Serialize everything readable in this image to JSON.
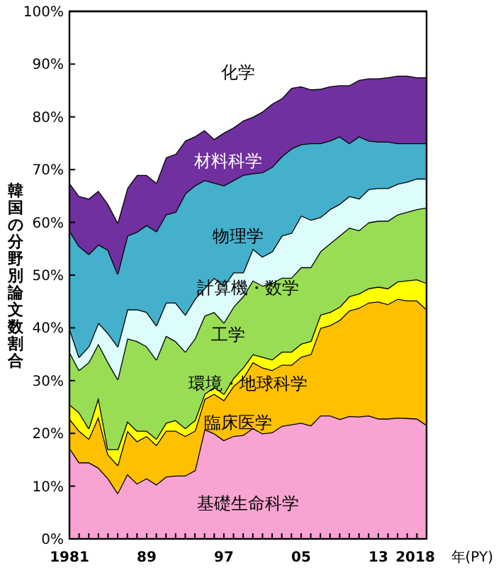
{
  "chart_data": {
    "type": "area",
    "stacked": true,
    "ylabel": "韓国の分野別論文数割合",
    "xlabel": "年(PY)",
    "x": [
      1981,
      1982,
      1983,
      1984,
      1985,
      1986,
      1987,
      1988,
      1989,
      1990,
      1991,
      1992,
      1993,
      1994,
      1995,
      1996,
      1997,
      1998,
      1999,
      2000,
      2001,
      2002,
      2003,
      2004,
      2005,
      2006,
      2007,
      2008,
      2009,
      2010,
      2011,
      2012,
      2013,
      2014,
      2015,
      2016,
      2017,
      2018
    ],
    "xlim": [
      1981,
      2018
    ],
    "xticks": [
      {
        "value": 1981,
        "label": "1981"
      },
      {
        "value": 1982,
        "label": null
      },
      {
        "value": 1983,
        "label": null
      },
      {
        "value": 1984,
        "label": null
      },
      {
        "value": 1985,
        "label": null
      },
      {
        "value": 1986,
        "label": null
      },
      {
        "value": 1987,
        "label": null
      },
      {
        "value": 1988,
        "label": null
      },
      {
        "value": 1989,
        "label": "89"
      },
      {
        "value": 1990,
        "label": null
      },
      {
        "value": 1991,
        "label": null
      },
      {
        "value": 1992,
        "label": null
      },
      {
        "value": 1993,
        "label": null
      },
      {
        "value": 1994,
        "label": null
      },
      {
        "value": 1995,
        "label": null
      },
      {
        "value": 1996,
        "label": null
      },
      {
        "value": 1997,
        "label": "97"
      },
      {
        "value": 1998,
        "label": null
      },
      {
        "value": 1999,
        "label": null
      },
      {
        "value": 2000,
        "label": null
      },
      {
        "value": 2001,
        "label": null
      },
      {
        "value": 2002,
        "label": null
      },
      {
        "value": 2003,
        "label": null
      },
      {
        "value": 2004,
        "label": null
      },
      {
        "value": 2005,
        "label": "05"
      },
      {
        "value": 2006,
        "label": null
      },
      {
        "value": 2007,
        "label": null
      },
      {
        "value": 2008,
        "label": null
      },
      {
        "value": 2009,
        "label": null
      },
      {
        "value": 2010,
        "label": null
      },
      {
        "value": 2011,
        "label": null
      },
      {
        "value": 2012,
        "label": null
      },
      {
        "value": 2013,
        "label": "13"
      },
      {
        "value": 2014,
        "label": null
      },
      {
        "value": 2015,
        "label": null
      },
      {
        "value": 2016,
        "label": null
      },
      {
        "value": 2017,
        "label": null
      },
      {
        "value": 2018,
        "label": "2018"
      }
    ],
    "ylim": [
      0,
      100
    ],
    "yticks": [
      {
        "value": 0,
        "label": "0%"
      },
      {
        "value": 10,
        "label": "10%"
      },
      {
        "value": 20,
        "label": "20%"
      },
      {
        "value": 30,
        "label": "30%"
      },
      {
        "value": 40,
        "label": "40%"
      },
      {
        "value": 50,
        "label": "50%"
      },
      {
        "value": 60,
        "label": "60%"
      },
      {
        "value": 70,
        "label": "70%"
      },
      {
        "value": 80,
        "label": "80%"
      },
      {
        "value": 90,
        "label": "90%"
      },
      {
        "value": 100,
        "label": "100%"
      }
    ],
    "grid": false,
    "series": [
      {
        "name": "基礎生命科学",
        "color": "#f9a3d2",
        "values": [
          17.3,
          14.5,
          14.5,
          13.5,
          11.5,
          8.7,
          12.3,
          10.5,
          11.5,
          10.3,
          11.8,
          12,
          12,
          13,
          20.8,
          20,
          18.7,
          19.5,
          19.7,
          21,
          20,
          20.2,
          21.4,
          21.7,
          22,
          21.5,
          23.4,
          23.4,
          22.7,
          23.3,
          23.2,
          23.4,
          22.8,
          22.8,
          23,
          22.9,
          22.8,
          21.6
        ]
      },
      {
        "name": "臨床医学",
        "color": "#ffc000",
        "values": [
          5.5,
          6,
          4.5,
          9.7,
          4.5,
          5.3,
          8.2,
          8,
          8,
          7.5,
          8.7,
          8.5,
          7.5,
          7.5,
          5.7,
          7.5,
          7.6,
          9.5,
          10.8,
          12.5,
          12.5,
          11.8,
          11.6,
          11.3,
          12.5,
          13.5,
          16.6,
          17.1,
          18.8,
          20,
          20.6,
          21.4,
          22.2,
          21.7,
          22.5,
          22.3,
          22.4,
          21.9
        ]
      },
      {
        "name": "環境・地球科学",
        "color": "#ffff00",
        "values": [
          2.7,
          3.5,
          2,
          3.6,
          1,
          3,
          1.8,
          2,
          1,
          1.2,
          1.5,
          2,
          1.5,
          2,
          1,
          1.3,
          1.2,
          1.5,
          2,
          1.5,
          2,
          2,
          2.5,
          2.5,
          2.5,
          2.5,
          2.5,
          2.5,
          2.5,
          2.7,
          2.7,
          2.7,
          2.8,
          3,
          3.3,
          3.8,
          4,
          5
        ]
      },
      {
        "name": "工学",
        "color": "#99dd55",
        "values": [
          10,
          8,
          12.5,
          10.2,
          16.5,
          13.3,
          15.7,
          17,
          16,
          15,
          16.5,
          15,
          14.5,
          15.5,
          14.8,
          14.2,
          13.5,
          13.5,
          13.5,
          14,
          13.5,
          14.5,
          14,
          14,
          14.5,
          14,
          12,
          13,
          13.5,
          13,
          12,
          12.5,
          12.5,
          12.8,
          12.7,
          13,
          13.3,
          14.3
        ]
      },
      {
        "name": "計算機・数学",
        "color": "#ddfcfc",
        "values": [
          4.5,
          2.5,
          3,
          4,
          5.5,
          6.2,
          5.5,
          6,
          6.5,
          6.5,
          6.3,
          7.3,
          7,
          7.5,
          5.2,
          6.5,
          7,
          6.5,
          4.5,
          6,
          5.5,
          6,
          8,
          8.5,
          9.8,
          9,
          6.5,
          6.5,
          6,
          6,
          6,
          6.3,
          6.2,
          6.2,
          5.8,
          5.7,
          5.8,
          5.5
        ]
      },
      {
        "name": "物理学",
        "color": "#44b0cc",
        "values": [
          18.5,
          21,
          17.5,
          14.8,
          15.8,
          13.8,
          14,
          14.7,
          16.5,
          17.8,
          16.7,
          17.2,
          23,
          21.5,
          20.5,
          18,
          19,
          17.5,
          18.5,
          14.3,
          16,
          16,
          15,
          16,
          13.5,
          14.5,
          14,
          13,
          12.8,
          10,
          11.8,
          9.2,
          8.8,
          8.8,
          7.7,
          7.3,
          6.7,
          6.7
        ]
      },
      {
        "name": "材料科学",
        "color": "#7030a0",
        "values": [
          9,
          9.5,
          10.5,
          10.2,
          8.7,
          9.7,
          9,
          10.8,
          9.5,
          9.2,
          10.8,
          11,
          10,
          9.3,
          9.5,
          8.3,
          10,
          10,
          10.3,
          10.7,
          11.5,
          12,
          11,
          11.5,
          11,
          10.2,
          10.3,
          10.3,
          9.7,
          11,
          10.7,
          11.8,
          12,
          12.2,
          12.8,
          12.8,
          12.5,
          12.5
        ]
      },
      {
        "name": "化学",
        "color": "#ffffff",
        "values": [
          32.5,
          35,
          35.5,
          34,
          36.5,
          40,
          33.5,
          31,
          31,
          32.5,
          27.7,
          27,
          24.5,
          23.7,
          22.5,
          24.2,
          23,
          22,
          20.7,
          20,
          19,
          17.5,
          16.5,
          14.5,
          14.2,
          14.8,
          14.7,
          14.2,
          14,
          14,
          13,
          12.7,
          12.7,
          12.5,
          12.2,
          12.2,
          12.5,
          12.5
        ]
      }
    ]
  }
}
